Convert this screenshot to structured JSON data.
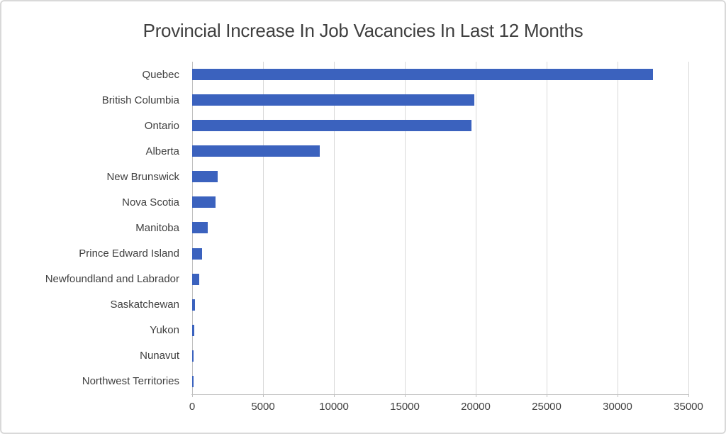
{
  "chart_data": {
    "type": "bar",
    "orientation": "horizontal",
    "title": "Provincial Increase In Job Vacancies In Last 12 Months",
    "categories": [
      "Quebec",
      "British Columbia",
      "Ontario",
      "Alberta",
      "New Brunswick",
      "Nova Scotia",
      "Manitoba",
      "Prince Edward Island",
      "Newfoundland and Labrador",
      "Saskatchewan",
      "Yukon",
      "Nunavut",
      "Northwest Territories"
    ],
    "values": [
      32500,
      19900,
      19700,
      9000,
      1800,
      1650,
      1100,
      700,
      500,
      200,
      150,
      120,
      100
    ],
    "xlabel": "",
    "ylabel": "",
    "xlim": [
      0,
      35000
    ],
    "xticks": [
      0,
      5000,
      10000,
      15000,
      20000,
      25000,
      30000,
      35000
    ],
    "xtick_labels": [
      "0",
      "5000",
      "10000",
      "15000",
      "20000",
      "25000",
      "30000",
      "35000"
    ],
    "grid": true,
    "legend": false,
    "bar_color": "#3b62be",
    "gridline_color": "#d9d9d9",
    "axis_color": "#bfbfbf",
    "text_color": "#404040",
    "background_color": "#ffffff",
    "border_color": "#d9d9d9"
  }
}
